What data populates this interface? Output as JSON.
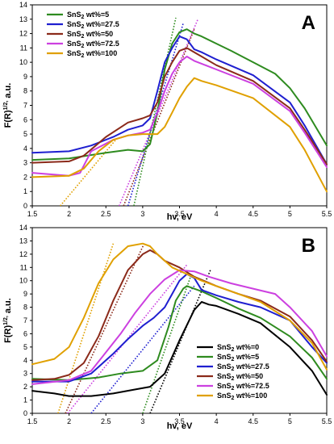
{
  "chart_data": [
    {
      "type": "line",
      "panel_label": "A",
      "xlabel": "hv, eV",
      "ylabel": "F(R)^1/2, a.u.",
      "xlim": [
        1.5,
        5.5
      ],
      "ylim": [
        0,
        14
      ],
      "xticks": [
        1.5,
        2,
        2.5,
        3,
        3.5,
        4,
        4.5,
        5,
        5.5
      ],
      "yticks": [
        0,
        1,
        2,
        3,
        4,
        5,
        6,
        7,
        8,
        9,
        10,
        11,
        12,
        13,
        14
      ],
      "grid": false,
      "legend": "top-left",
      "series": [
        {
          "name": "SnS2 wt%=5",
          "color": "#2e8b1f",
          "x": [
            1.5,
            2.0,
            2.5,
            2.8,
            3.0,
            3.1,
            3.2,
            3.3,
            3.4,
            3.5,
            3.6,
            3.7,
            3.8,
            4.0,
            4.2,
            4.5,
            4.8,
            5.0,
            5.2,
            5.5
          ],
          "y": [
            3.2,
            3.3,
            3.7,
            3.9,
            3.8,
            4.3,
            6.5,
            9.5,
            11.3,
            12.1,
            12.3,
            12.0,
            11.8,
            11.3,
            10.8,
            10.0,
            9.2,
            8.2,
            6.8,
            4.2
          ]
        },
        {
          "name": "SnS2 wt%=27.5",
          "color": "#1f1fd0",
          "x": [
            1.5,
            2.0,
            2.3,
            2.6,
            2.8,
            3.0,
            3.1,
            3.2,
            3.3,
            3.4,
            3.5,
            3.6,
            3.7,
            3.8,
            4.0,
            4.5,
            5.0,
            5.2,
            5.5
          ],
          "y": [
            3.7,
            3.8,
            4.2,
            4.8,
            5.3,
            5.6,
            6.1,
            8.0,
            10.0,
            11.0,
            11.8,
            11.6,
            10.9,
            10.7,
            10.2,
            9.1,
            7.2,
            5.6,
            2.9
          ]
        },
        {
          "name": "SnS2 wt%=50",
          "color": "#8b2a1a",
          "x": [
            1.5,
            2.0,
            2.2,
            2.5,
            2.8,
            3.0,
            3.1,
            3.2,
            3.3,
            3.4,
            3.5,
            3.6,
            3.7,
            3.8,
            4.0,
            4.5,
            5.0,
            5.2,
            5.5
          ],
          "y": [
            3.0,
            3.1,
            3.5,
            4.8,
            5.8,
            6.1,
            6.3,
            7.2,
            9.0,
            10.0,
            10.8,
            11.0,
            10.7,
            10.4,
            9.8,
            8.7,
            6.8,
            5.3,
            2.9
          ]
        },
        {
          "name": "SnS2 wt%=72.5",
          "color": "#cc40e0",
          "x": [
            1.5,
            2.0,
            2.15,
            2.3,
            2.6,
            2.8,
            3.0,
            3.1,
            3.2,
            3.3,
            3.4,
            3.5,
            3.6,
            3.7,
            3.8,
            4.0,
            4.5,
            5.0,
            5.2,
            5.5
          ],
          "y": [
            2.3,
            2.1,
            2.3,
            3.8,
            4.6,
            4.9,
            5.1,
            5.3,
            6.5,
            8.0,
            9.2,
            10.0,
            10.4,
            10.1,
            9.9,
            9.5,
            8.5,
            6.6,
            5.1,
            2.7
          ]
        },
        {
          "name": "SnS2 wt%=100",
          "color": "#e0a000",
          "x": [
            1.5,
            2.0,
            2.2,
            2.4,
            2.6,
            2.8,
            3.0,
            3.2,
            3.3,
            3.4,
            3.5,
            3.6,
            3.7,
            3.8,
            4.0,
            4.5,
            5.0,
            5.2,
            5.5
          ],
          "y": [
            2.0,
            2.1,
            2.6,
            3.8,
            4.6,
            4.9,
            5.0,
            5.0,
            5.5,
            6.5,
            7.5,
            8.3,
            8.9,
            8.7,
            8.4,
            7.5,
            5.5,
            3.9,
            1.0
          ]
        }
      ],
      "tangents": [
        {
          "color": "#e0a000",
          "x": [
            1.88,
            2.65
          ],
          "y": [
            0,
            4.7
          ]
        },
        {
          "color": "#cc40e0",
          "x": [
            2.68,
            3.75
          ],
          "y": [
            0,
            13.0
          ]
        },
        {
          "color": "#8b2a1a",
          "x": [
            2.74,
            3.7
          ],
          "y": [
            0,
            12.3
          ]
        },
        {
          "color": "#1f1fd0",
          "x": [
            2.8,
            3.55
          ],
          "y": [
            0,
            12.7
          ]
        },
        {
          "color": "#2e8b1f",
          "x": [
            2.88,
            3.45
          ],
          "y": [
            0,
            13.1
          ]
        }
      ]
    },
    {
      "type": "line",
      "panel_label": "B",
      "xlabel": "hv, eV",
      "ylabel": "F(R)^1/2, a.u.",
      "xlim": [
        1.5,
        5.5
      ],
      "ylim": [
        0,
        14
      ],
      "xticks": [
        1.5,
        2,
        2.5,
        3,
        3.5,
        4,
        4.5,
        5,
        5.5
      ],
      "yticks": [
        0,
        1,
        2,
        3,
        4,
        5,
        6,
        7,
        8,
        9,
        10,
        11,
        12,
        13,
        14
      ],
      "grid": false,
      "legend": "bottom-right",
      "series": [
        {
          "name": "SnS2 wt%=0",
          "color": "#000000",
          "x": [
            1.5,
            1.8,
            2.0,
            2.3,
            2.6,
            2.9,
            3.1,
            3.3,
            3.5,
            3.7,
            3.8,
            3.9,
            4.0,
            4.3,
            4.6,
            5.0,
            5.3,
            5.5
          ],
          "y": [
            1.7,
            1.5,
            1.3,
            1.3,
            1.5,
            1.8,
            2.0,
            3.0,
            5.5,
            7.8,
            8.4,
            8.2,
            8.1,
            7.5,
            6.8,
            5.0,
            3.2,
            1.4
          ]
        },
        {
          "name": "SnS2 wt%=5",
          "color": "#2e8b1f",
          "x": [
            1.5,
            2.0,
            2.4,
            2.7,
            3.0,
            3.2,
            3.35,
            3.45,
            3.55,
            3.6,
            3.8,
            4.0,
            4.3,
            4.6,
            5.0,
            5.3,
            5.5
          ],
          "y": [
            2.6,
            2.5,
            2.7,
            3.0,
            3.2,
            4.0,
            6.5,
            8.5,
            9.4,
            9.6,
            9.2,
            8.7,
            7.9,
            7.2,
            5.8,
            4.2,
            2.6
          ]
        },
        {
          "name": "SnS2 wt%=27.5",
          "color": "#1f1fd0",
          "x": [
            1.5,
            2.0,
            2.3,
            2.6,
            2.8,
            3.0,
            3.15,
            3.3,
            3.4,
            3.5,
            3.6,
            3.7,
            3.8,
            4.0,
            4.3,
            4.6,
            5.0,
            5.3,
            5.5
          ],
          "y": [
            2.4,
            2.4,
            3.0,
            4.5,
            5.6,
            6.6,
            7.2,
            8.0,
            9.0,
            10.0,
            10.5,
            10.2,
            9.3,
            8.9,
            8.4,
            8.0,
            7.0,
            5.0,
            3.8
          ]
        },
        {
          "name": "SnS2 wt%=50",
          "color": "#8b2a1a",
          "x": [
            1.5,
            1.8,
            2.0,
            2.2,
            2.4,
            2.6,
            2.8,
            3.0,
            3.1,
            3.2,
            3.3,
            3.5,
            3.7,
            4.0,
            4.3,
            4.6,
            5.0,
            5.3,
            5.5
          ],
          "y": [
            2.5,
            2.6,
            2.9,
            3.8,
            5.8,
            8.5,
            10.8,
            12.0,
            12.3,
            12.0,
            11.5,
            11.0,
            10.3,
            9.6,
            9.0,
            8.5,
            7.3,
            5.5,
            3.9
          ]
        },
        {
          "name": "SnS2 wt%=72.5",
          "color": "#cc40e0",
          "x": [
            1.5,
            2.0,
            2.3,
            2.5,
            2.7,
            2.9,
            3.1,
            3.3,
            3.5,
            3.7,
            3.9,
            4.2,
            4.5,
            4.8,
            5.0,
            5.3,
            5.5
          ],
          "y": [
            2.2,
            2.5,
            3.2,
            4.6,
            6.0,
            7.6,
            9.0,
            10.1,
            10.8,
            10.7,
            10.3,
            9.8,
            9.4,
            9.0,
            8.0,
            6.2,
            4.3
          ]
        },
        {
          "name": "SnS2 wt%=100",
          "color": "#e0a000",
          "x": [
            1.5,
            1.8,
            2.0,
            2.2,
            2.4,
            2.6,
            2.8,
            3.0,
            3.1,
            3.2,
            3.4,
            3.6,
            3.8,
            4.0,
            4.3,
            4.6,
            5.0,
            5.3,
            5.5
          ],
          "y": [
            3.7,
            4.1,
            5.0,
            7.2,
            9.8,
            11.6,
            12.6,
            12.8,
            12.6,
            12.0,
            11.0,
            10.5,
            10.0,
            9.6,
            9.0,
            8.4,
            7.0,
            5.3,
            3.3
          ]
        }
      ],
      "tangents": [
        {
          "color": "#e0a000",
          "x": [
            1.85,
            2.6
          ],
          "y": [
            0,
            12.8
          ]
        },
        {
          "color": "#8b2a1a",
          "x": [
            1.95,
            3.02
          ],
          "y": [
            0,
            12.8
          ]
        },
        {
          "color": "#cc40e0",
          "x": [
            1.98,
            3.6
          ],
          "y": [
            0,
            11.2
          ]
        },
        {
          "color": "#1f1fd0",
          "x": [
            2.3,
            3.7
          ],
          "y": [
            0,
            9.6
          ]
        },
        {
          "color": "#2e8b1f",
          "x": [
            3.0,
            3.65
          ],
          "y": [
            0,
            10.3
          ]
        },
        {
          "color": "#000000",
          "x": [
            3.1,
            3.92
          ],
          "y": [
            0,
            10.8
          ]
        }
      ]
    }
  ]
}
